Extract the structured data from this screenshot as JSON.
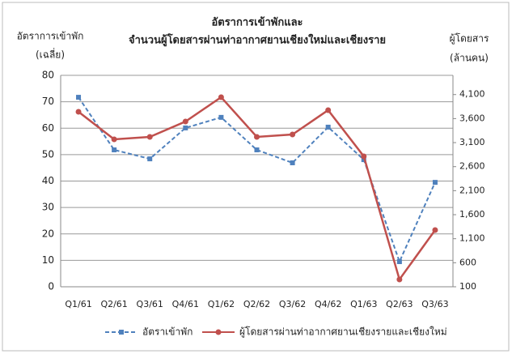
{
  "chart_data": {
    "type": "line",
    "title": [
      "อัตราการเข้าพักและ",
      "จำนวนผู้โดยสารผ่านท่าอากาศยานเชียงใหม่และเชียงราย"
    ],
    "ylabel": [
      "อัตราการเข้าพัก",
      "(เฉลี่ย)"
    ],
    "y2label": [
      "ผู้โดยสาร",
      "(ล้านคน)"
    ],
    "categories": [
      "Q1/61",
      "Q2/61",
      "Q3/61",
      "Q4/61",
      "Q1/62",
      "Q2/62",
      "Q3/62",
      "Q4/62",
      "Q1/63",
      "Q2/63",
      "Q3/63"
    ],
    "series": [
      {
        "name": "อัตราเข้าพัก",
        "color": "#4f81bd",
        "values": [
          71.7,
          51.8,
          48.4,
          60.1,
          64.1,
          51.8,
          46.9,
          60.4,
          48.1,
          9.5,
          39.5
        ]
      },
      {
        "name": "ผู้โดยสารผ่านท่าอากาศยานเชียงรายและเชียงใหม่",
        "color": "#c0504d",
        "axis": "y2",
        "values": [
          3741,
          3168,
          3219,
          3539,
          4045,
          3219,
          3269,
          3775,
          2814,
          252,
          1280
        ]
      }
    ],
    "ylim": [
      0,
      80
    ],
    "yticks": [
      0,
      10,
      20,
      30,
      40,
      50,
      60,
      70,
      80
    ],
    "y2lim": [
      100,
      4500
    ],
    "y2ticks": [
      100,
      600,
      {
        "value": 1100,
        "label": "1,100"
      },
      {
        "value": 1600,
        "label": "1,600"
      },
      {
        "value": 2100,
        "label": "2,100"
      },
      {
        "value": 2600,
        "label": "2,600"
      },
      {
        "value": 3100,
        "label": "3,100"
      },
      {
        "value": 3600,
        "label": "3,600"
      },
      {
        "value": 4100,
        "label": "4,100"
      }
    ],
    "grid": true,
    "legend": "bottom"
  }
}
